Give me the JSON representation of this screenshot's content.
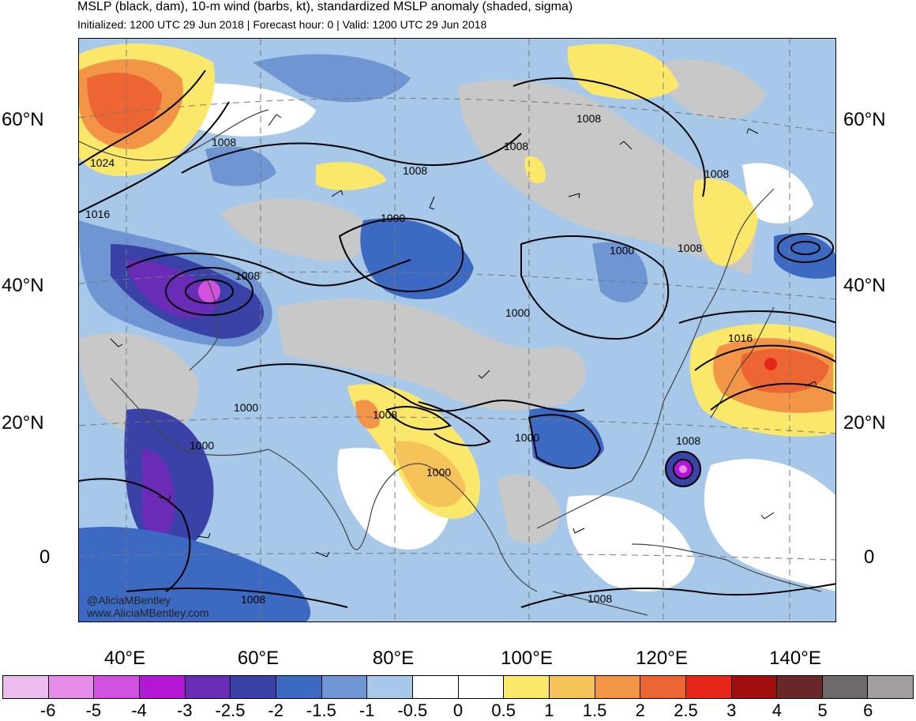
{
  "header": {
    "title": "MSLP (black, dam), 10-m wind (barbs, kt), standardized MSLP anomaly (shaded, sigma)",
    "subtitle": "Initialized: 1200 UTC 29 Jun 2018 | Forecast hour: 0 | Valid: 1200 UTC 29 Jun 2018"
  },
  "axes": {
    "lat_labels": [
      "60°N",
      "40°N",
      "20°N",
      "0"
    ],
    "lon_labels": [
      "40°E",
      "60°E",
      "80°E",
      "100°E",
      "120°E",
      "140°E"
    ]
  },
  "contours": {
    "labels": [
      "1024",
      "1016",
      "1008",
      "1008",
      "1008",
      "1008",
      "1008",
      "1000",
      "1000",
      "1000",
      "1000",
      "1000",
      "1000",
      "1000",
      "1008",
      "1008",
      "1016",
      "1008",
      "1008",
      "1008",
      "1008"
    ]
  },
  "colorbar": {
    "colors": [
      "#eebbee",
      "#e58be8",
      "#d252df",
      "#b317d4",
      "#6a2cb6",
      "#3a41a7",
      "#3c6ac2",
      "#6f96d3",
      "#a7c8e8",
      "#ffffff",
      "#ffffff",
      "#fbe86b",
      "#f6c35a",
      "#f29546",
      "#ec6533",
      "#e52619",
      "#a20e0e",
      "#6b2727",
      "#6e6a6a",
      "#a59e9e"
    ],
    "tick_labels": [
      "-6",
      "-5",
      "-4",
      "-3",
      "-2.5",
      "-2",
      "-1.5",
      "-1",
      "-0.5",
      "0",
      "0.5",
      "1",
      "1.5",
      "2",
      "2.5",
      "3",
      "4",
      "5",
      "6"
    ]
  },
  "credits": {
    "handle": "@AliciaMBentley",
    "website": "www.AliciaMBentley.com"
  }
}
